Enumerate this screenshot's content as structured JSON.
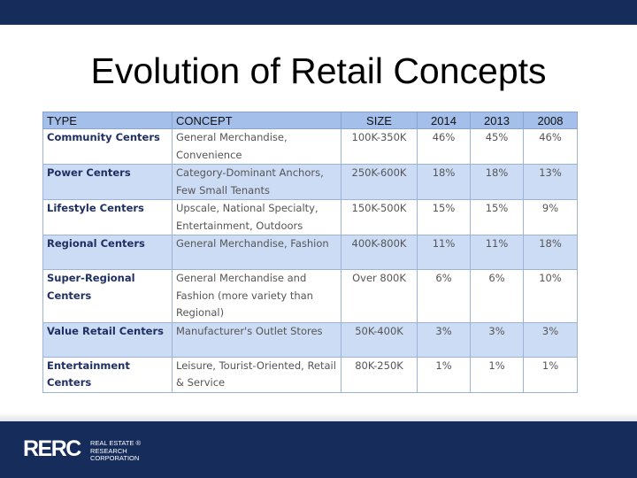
{
  "slide": {
    "title": "Evolution of Retail Concepts"
  },
  "table": {
    "headers": [
      "TYPE",
      "CONCEPT",
      "SIZE",
      "2014",
      "2013",
      "2008"
    ],
    "rows": [
      {
        "type": "Community Centers",
        "concept": "General Merchandise, Convenience",
        "size": "100K-350K",
        "y2014": "46%",
        "y2013": "45%",
        "y2008": "46%"
      },
      {
        "type": "Power Centers",
        "concept": "Category-Dominant Anchors, Few Small Tenants",
        "size": "250K-600K",
        "y2014": "18%",
        "y2013": "18%",
        "y2008": "13%"
      },
      {
        "type": "Lifestyle Centers",
        "concept": "Upscale, National Specialty, Entertainment, Outdoors",
        "size": "150K-500K",
        "y2014": "15%",
        "y2013": "15%",
        "y2008": "9%"
      },
      {
        "type": "Regional Centers",
        "concept": "General Merchandise, Fashion",
        "size": "400K-800K",
        "y2014": "11%",
        "y2013": "11%",
        "y2008": "18%"
      },
      {
        "type": "Super-Regional Centers",
        "concept": "General Merchandise and Fashion (more variety than Regional)",
        "size": "Over 800K",
        "y2014": "6%",
        "y2013": "6%",
        "y2008": "10%"
      },
      {
        "type": "Value Retail Centers",
        "concept": "Manufacturer's Outlet Stores",
        "size": "50K-400K",
        "y2014": "3%",
        "y2013": "3%",
        "y2008": "3%"
      },
      {
        "type": "Entertainment Centers",
        "concept": "Leisure, Tourist-Oriented, Retail & Service",
        "size": "80K-250K",
        "y2014": "1%",
        "y2013": "1%",
        "y2008": "1%"
      }
    ]
  },
  "logo": {
    "mark": "RERC",
    "line1": "REAL ESTATE ®",
    "line2": "RESEARCH",
    "line3": "CORPORATION"
  },
  "colors": {
    "navy": "#162c5b",
    "header_blue": "#a4bfea",
    "row_blue": "#cddcf5"
  }
}
